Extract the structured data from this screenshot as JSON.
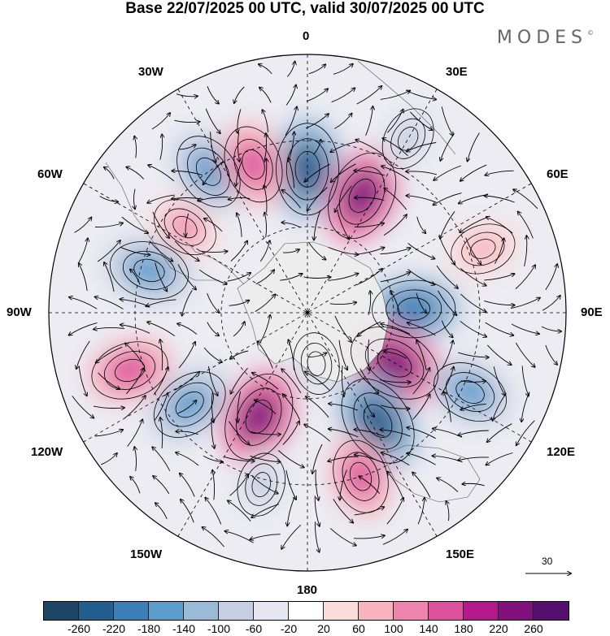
{
  "title": "Base 22/07/2025 00 UTC, valid 30/07/2025 00 UTC",
  "brand": "MODES",
  "brand_mark": "©",
  "map_labels": {
    "top": "0",
    "bottom": "180",
    "left": "90W",
    "right": "90E",
    "upper_left_1": "30W",
    "upper_left_2": "60W",
    "lower_left_1": "120W",
    "lower_left_2": "150W",
    "upper_right_1": "30E",
    "upper_right_2": "60E",
    "lower_right_1": "120E",
    "lower_right_2": "150E"
  },
  "vector_scale": {
    "label": "30"
  },
  "colorbar": {
    "ticks": [
      "-260",
      "-220",
      "-180",
      "-140",
      "-100",
      "-60",
      "-20",
      "20",
      "60",
      "100",
      "140",
      "180",
      "220",
      "260"
    ],
    "colors": [
      "#1d4566",
      "#225e8e",
      "#3b7fb6",
      "#5d9dcc",
      "#9bbad8",
      "#c6cfe2",
      "#e6e6f0",
      "#ffffff",
      "#fadcdc",
      "#f7b4bf",
      "#ef84ad",
      "#dc509d",
      "#b4198a",
      "#82117e",
      "#56106e"
    ]
  },
  "field_blobs": [
    {
      "lon": 0,
      "lat": -40,
      "value": -240
    },
    {
      "lon": 25,
      "lat": -45,
      "value": 230
    },
    {
      "lon": 88,
      "lat": -53,
      "value": -190
    },
    {
      "lon": 120,
      "lat": -55,
      "value": 250
    },
    {
      "lon": 147,
      "lat": -45,
      "value": -240
    },
    {
      "lon": 162,
      "lat": -30,
      "value": 140
    },
    {
      "lon": 116,
      "lat": -27,
      "value": -150
    },
    {
      "lon": 70,
      "lat": -25,
      "value": 90
    },
    {
      "lon": 30,
      "lat": -20,
      "value": -80
    },
    {
      "lon": -155,
      "lat": -50,
      "value": 230
    },
    {
      "lon": -128,
      "lat": -38,
      "value": -170
    },
    {
      "lon": -108,
      "lat": -25,
      "value": 160
    },
    {
      "lon": -75,
      "lat": -33,
      "value": -170
    },
    {
      "lon": -55,
      "lat": -38,
      "value": 100
    },
    {
      "lon": -35,
      "lat": -30,
      "value": -160
    },
    {
      "lon": -20,
      "lat": -35,
      "value": 160
    },
    {
      "lon": -165,
      "lat": -28,
      "value": -80
    },
    {
      "lon": 170,
      "lat": -72,
      "value": -70
    }
  ]
}
